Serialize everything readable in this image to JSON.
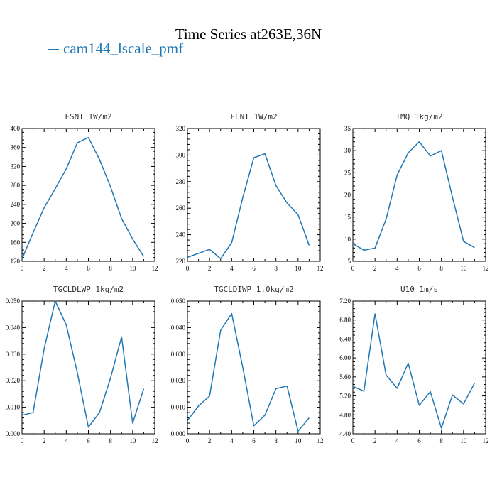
{
  "title": "Time Series at263E,36N",
  "legend": {
    "label": "cam144_lscale_pmf",
    "color": "#1f77b4"
  },
  "chart_data": [
    {
      "type": "line",
      "title": "FSNT   1W/m2",
      "x": [
        0,
        1,
        2,
        3,
        4,
        5,
        6,
        7,
        8,
        9,
        10,
        11
      ],
      "series": [
        {
          "values": [
            125,
            180,
            233,
            273,
            315,
            370,
            381,
            335,
            277,
            210,
            167,
            130
          ]
        }
      ],
      "xlim": [
        0,
        12
      ],
      "ylim": [
        120,
        400
      ],
      "xticks": [
        "0",
        "2",
        "4",
        "6",
        "8",
        "10",
        "12"
      ],
      "yticks": [
        "120",
        "160",
        "200",
        "240",
        "280",
        "320",
        "360",
        "400"
      ]
    },
    {
      "type": "line",
      "title": "FLNT   1W/m2",
      "x": [
        0,
        1,
        2,
        3,
        4,
        5,
        6,
        7,
        8,
        9,
        10,
        11
      ],
      "series": [
        {
          "values": [
            223,
            226,
            229,
            222,
            234,
            268,
            298,
            301,
            277,
            264,
            255,
            232
          ]
        }
      ],
      "xlim": [
        0,
        12
      ],
      "ylim": [
        220,
        320
      ],
      "xticks": [
        "0",
        "2",
        "4",
        "6",
        "8",
        "10",
        "12"
      ],
      "yticks": [
        "220",
        "240",
        "260",
        "280",
        "300",
        "320"
      ]
    },
    {
      "type": "line",
      "title": "TMQ   1kg/m2",
      "x": [
        0,
        1,
        2,
        3,
        4,
        5,
        6,
        7,
        8,
        9,
        10,
        11
      ],
      "series": [
        {
          "values": [
            9.0,
            7.5,
            8.0,
            14.5,
            24.5,
            29.5,
            32.0,
            28.8,
            30.0,
            19.5,
            9.5,
            8.1
          ]
        }
      ],
      "xlim": [
        0,
        12
      ],
      "ylim": [
        5,
        35
      ],
      "xticks": [
        "0",
        "2",
        "4",
        "6",
        "8",
        "10",
        "12"
      ],
      "yticks": [
        "5",
        "10",
        "15",
        "20",
        "25",
        "30",
        "35"
      ]
    },
    {
      "type": "line",
      "title": "TGCLDLWP   1kg/m2",
      "x": [
        0,
        1,
        2,
        3,
        4,
        5,
        6,
        7,
        8,
        9,
        10,
        11
      ],
      "series": [
        {
          "values": [
            0.007,
            0.008,
            0.032,
            0.05,
            0.041,
            0.023,
            0.0025,
            0.008,
            0.021,
            0.0365,
            0.004,
            0.017
          ]
        }
      ],
      "xlim": [
        0,
        12
      ],
      "ylim": [
        0,
        0.05
      ],
      "xticks": [
        "0",
        "2",
        "4",
        "6",
        "8",
        "10",
        "12"
      ],
      "yticks": [
        "0.000",
        "0.010",
        "0.020",
        "0.030",
        "0.040",
        "0.050"
      ]
    },
    {
      "type": "line",
      "title": "TGCLDIWP   1.0kg/m2",
      "x": [
        0,
        1,
        2,
        3,
        4,
        5,
        6,
        7,
        8,
        9,
        10,
        11
      ],
      "series": [
        {
          "values": [
            0.005,
            0.0105,
            0.0142,
            0.039,
            0.0453,
            0.025,
            0.003,
            0.007,
            0.017,
            0.018,
            0.001,
            0.006
          ]
        }
      ],
      "xlim": [
        0,
        12
      ],
      "ylim": [
        0,
        0.05
      ],
      "xticks": [
        "0",
        "2",
        "4",
        "6",
        "8",
        "10",
        "12"
      ],
      "yticks": [
        "0.000",
        "0.010",
        "0.020",
        "0.030",
        "0.040",
        "0.050"
      ]
    },
    {
      "type": "line",
      "title": "U10   1m/s",
      "x": [
        0,
        1,
        2,
        3,
        4,
        5,
        6,
        7,
        8,
        9,
        10,
        11
      ],
      "series": [
        {
          "values": [
            5.4,
            5.3,
            6.93,
            5.64,
            5.36,
            5.89,
            5.0,
            5.29,
            4.52,
            5.22,
            5.03,
            5.47
          ]
        }
      ],
      "xlim": [
        0,
        12
      ],
      "ylim": [
        4.4,
        7.2
      ],
      "xticks": [
        "0",
        "2",
        "4",
        "6",
        "8",
        "10",
        "12"
      ],
      "yticks": [
        "4.40",
        "4.80",
        "5.20",
        "5.60",
        "6.00",
        "6.40",
        "6.80",
        "7.20"
      ]
    }
  ]
}
